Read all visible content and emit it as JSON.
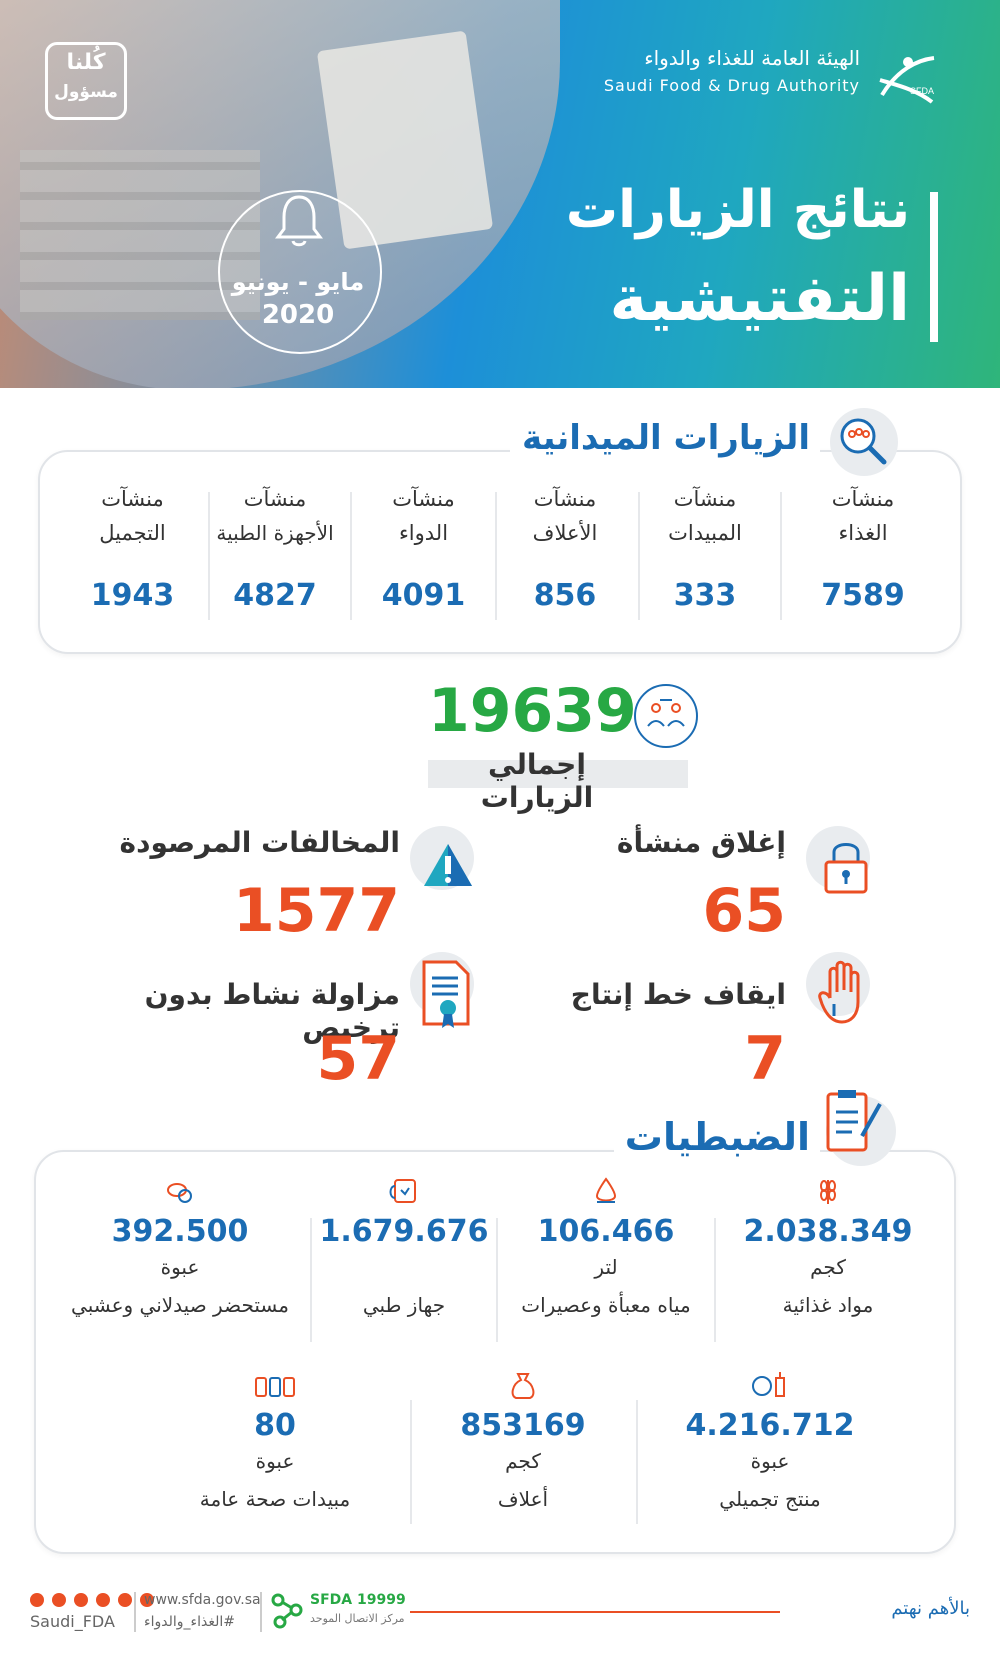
{
  "header": {
    "logo_line1": "كُلنا",
    "logo_line2": "مسؤول",
    "authority_ar": "الهيئة العامة للغذاء والدواء",
    "authority_en": "Saudi Food & Drug Authority",
    "title_line1": "نتائج الزيارات",
    "title_line2": "التفتيشية",
    "period": "مايو - يونيو",
    "year": "2020"
  },
  "field_visits": {
    "title": "الزيارات الميدانية",
    "categories": [
      {
        "line1": "منشآت",
        "line2": "الغذاء",
        "value": "7589"
      },
      {
        "line1": "منشآت",
        "line2": "المبيدات",
        "value": "333"
      },
      {
        "line1": "منشآت",
        "line2": "الأعلاف",
        "value": "856"
      },
      {
        "line1": "منشآت",
        "line2": "الدواء",
        "value": "4091"
      },
      {
        "line1": "منشآت",
        "line2": "الأجهزة الطبية",
        "value": "4827"
      },
      {
        "line1": "منشآت",
        "line2": "التجميل",
        "value": "1943"
      }
    ]
  },
  "total": {
    "value": "19639",
    "label": "إجمالي الزيارات"
  },
  "stats": {
    "closure": {
      "label": "إغلاق منشأة",
      "value": "65"
    },
    "violations": {
      "label": "المخالفات المرصودة",
      "value": "1577"
    },
    "stop_line": {
      "label": "ايقاف خط إنتاج",
      "value": "7"
    },
    "unlicensed": {
      "label": "مزاولة نشاط بدون ترخيص",
      "value": "57"
    }
  },
  "seizures": {
    "title": "الضبطيات",
    "row1": [
      {
        "value": "2.038.349",
        "unit": "كجم",
        "name": "مواد غذائية",
        "icon": "wheat-icon"
      },
      {
        "value": "106.466",
        "unit": "لتر",
        "name": "مياه معبأة وعصيرات",
        "icon": "water-drop-icon"
      },
      {
        "value": "1.679.676",
        "unit": "",
        "name": "جهاز طبي",
        "icon": "medical-device-icon"
      },
      {
        "value": "392.500",
        "unit": "عبوة",
        "name": "مستحضر صيدلاني وعشبي",
        "icon": "pills-icon"
      }
    ],
    "row2": [
      {
        "value": "4.216.712",
        "unit": "عبوة",
        "name": "منتج تجميلي",
        "icon": "cosmetics-icon"
      },
      {
        "value": "853169",
        "unit": "كجم",
        "name": "أعلاف",
        "icon": "sack-icon"
      },
      {
        "value": "80",
        "unit": "عبوة",
        "name": "مبيدات صحة عامة",
        "icon": "pesticide-icon"
      }
    ]
  },
  "footer": {
    "handle": "Saudi_FDA",
    "website": "www.sfda.gov.sa",
    "hashtag": "#الغذاء_والدواء",
    "hotline": "SFDA 19999",
    "hotline_sub": "مركز الاتصال الموحد",
    "slogan": "بالأهم نهتم"
  },
  "colors": {
    "blue": "#1b6cb3",
    "green": "#27a844",
    "red": "#ea4f24",
    "gray_border": "#e1e4e8"
  }
}
